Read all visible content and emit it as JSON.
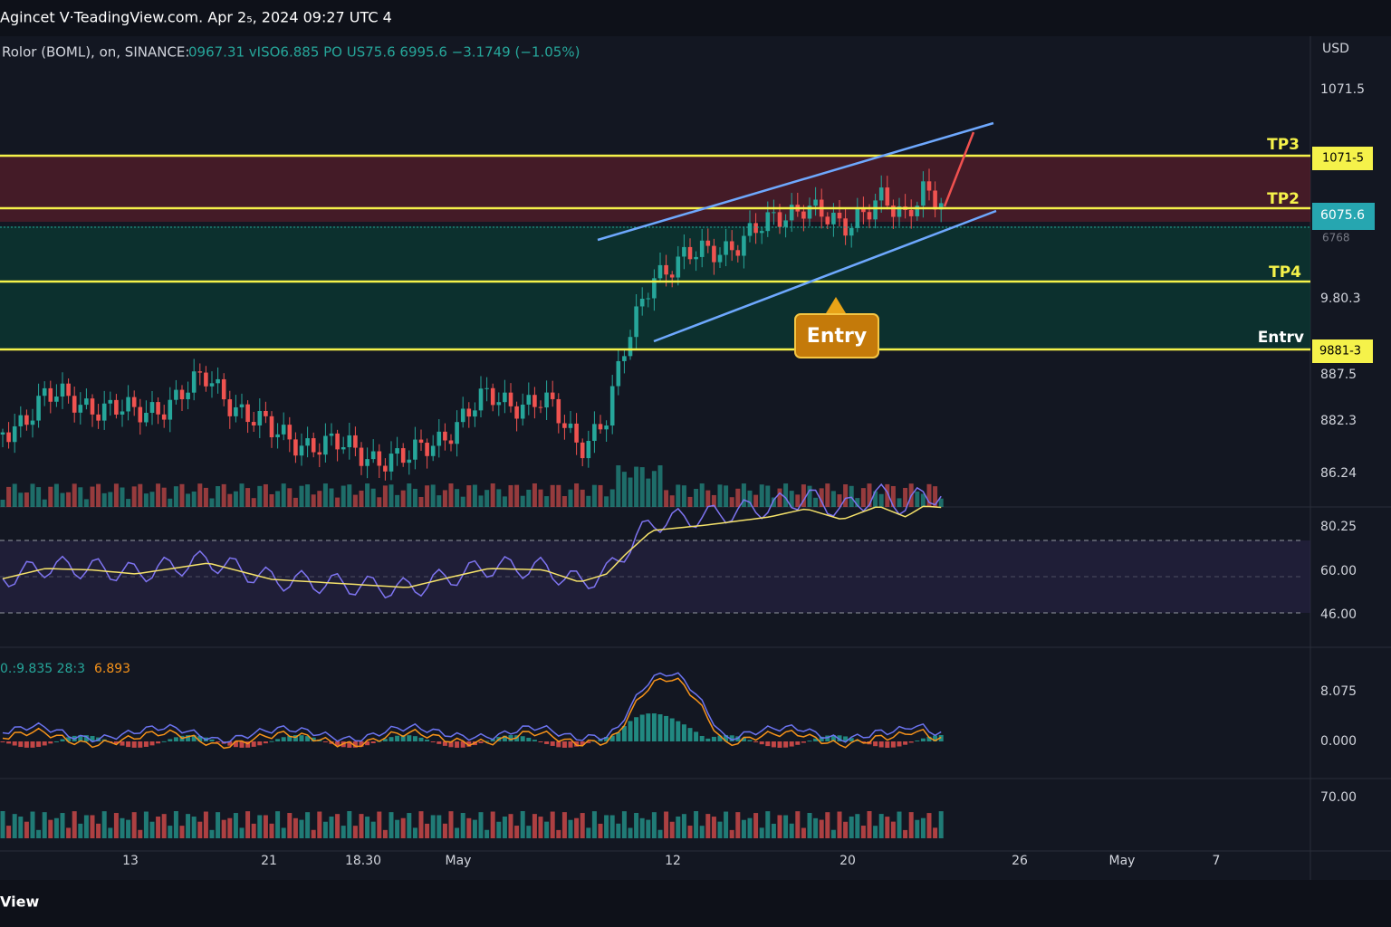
{
  "header": {
    "title": "Agincet V·TeadingView.com. Apr 2₅, 2024 09:27 UTC 4"
  },
  "legend": {
    "symbol": "Rolor (BOML), on, SINANCE:",
    "values": "0967.31  vISO6.885 PO  US75.6  6995.6  −3.1749 (−1.05%)"
  },
  "price_axis": {
    "currency": "USD",
    "labels": [
      "1071.5",
      "6768",
      "9.80.3",
      "887.5",
      "882.3",
      "86.24"
    ],
    "boxes": [
      "1071-5",
      "6075.6",
      "9881-3"
    ]
  },
  "levels": [
    "TP3",
    "TP2",
    "TP4",
    "Entrv"
  ],
  "callout": "Entry",
  "rsi_axis": [
    "80.25",
    "60.00",
    "46.00"
  ],
  "macd": {
    "legend_a": "0.:9.835  28:3",
    "legend_b": "6.893",
    "axis": [
      "8.075",
      "0.000"
    ]
  },
  "volume_axis": "70.00",
  "time_axis": [
    "13",
    "21",
    "18.30",
    "May",
    "12",
    "20",
    "26",
    "May",
    "7"
  ],
  "footer": "View"
}
